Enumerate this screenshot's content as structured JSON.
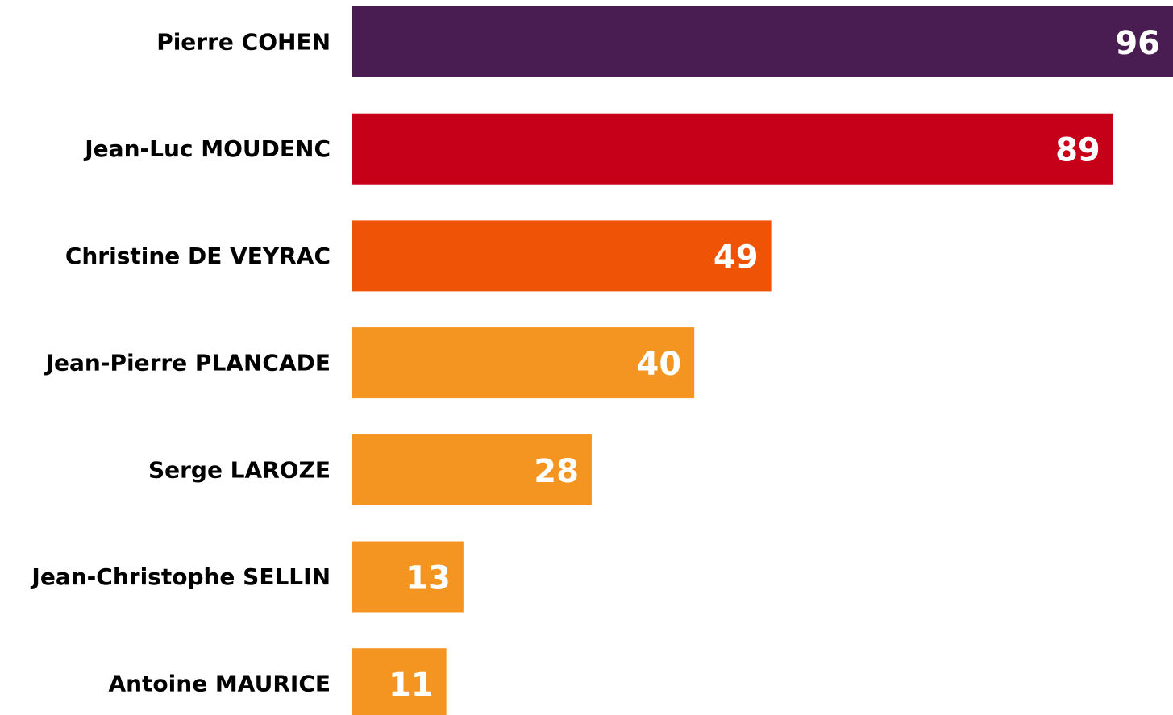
{
  "chart_data": {
    "type": "bar",
    "orientation": "horizontal",
    "categories": [
      "Pierre COHEN",
      "Jean-Luc MOUDENC",
      "Christine DE VEYRAC",
      "Jean-Pierre PLANCADE",
      "Serge LAROZE",
      "Jean-Christophe SELLIN",
      "Antoine MAURICE"
    ],
    "values": [
      96,
      89,
      49,
      40,
      28,
      13,
      11
    ],
    "value_labels": [
      "96",
      "89",
      "49",
      "40",
      "28",
      "13",
      "11"
    ],
    "colors": [
      "#4a1d52",
      "#c50018",
      "#ef5306",
      "#f49421",
      "#f49421",
      "#f49421",
      "#f49421"
    ],
    "xlim": [
      0,
      96
    ],
    "grid": false,
    "legend": "none"
  }
}
